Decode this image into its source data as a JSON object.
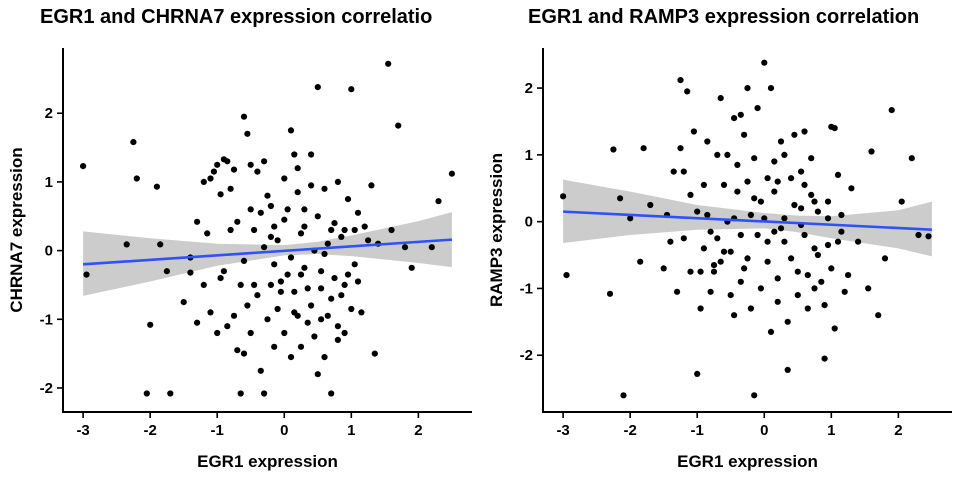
{
  "chart_data": [
    {
      "type": "scatter",
      "title": "EGR1 and CHRNA7 expression correlatio",
      "xlabel": "EGR1 expression",
      "ylabel": "CHRNA7 expression",
      "xlim": [
        -3.3,
        2.8
      ],
      "ylim": [
        -2.35,
        2.95
      ],
      "xticks": [
        -3,
        -2,
        -1,
        0,
        1,
        2
      ],
      "yticks": [
        -2,
        -1,
        0,
        1,
        2
      ],
      "grid": false,
      "fit_line": {
        "x": [
          -3.0,
          2.5
        ],
        "y": [
          -0.2,
          0.16
        ],
        "color": "#3050F8"
      },
      "confidence_band": {
        "x": [
          -3.0,
          -2.0,
          -1.0,
          0.0,
          0.5,
          1.0,
          2.0,
          2.5
        ],
        "lower": [
          -0.66,
          -0.45,
          -0.22,
          -0.07,
          -0.05,
          -0.08,
          -0.18,
          -0.24
        ],
        "upper": [
          0.28,
          0.18,
          0.1,
          0.08,
          0.13,
          0.22,
          0.43,
          0.56
        ],
        "color": "#cccccc"
      },
      "points": [
        [
          -3.0,
          1.23
        ],
        [
          -2.95,
          -0.35
        ],
        [
          -2.25,
          1.58
        ],
        [
          -2.2,
          1.05
        ],
        [
          -2.35,
          0.09
        ],
        [
          -2.0,
          -1.08
        ],
        [
          -1.9,
          0.93
        ],
        [
          -1.85,
          0.09
        ],
        [
          -2.05,
          -2.08
        ],
        [
          -1.7,
          -2.08
        ],
        [
          -1.75,
          -0.3
        ],
        [
          -1.4,
          -0.32
        ],
        [
          -1.3,
          0.42
        ],
        [
          -1.1,
          1.05
        ],
        [
          -1.05,
          1.15
        ],
        [
          -1.0,
          1.25
        ],
        [
          -0.95,
          0.82
        ],
        [
          -0.9,
          1.33
        ],
        [
          -0.85,
          1.3
        ],
        [
          -0.8,
          0.9
        ],
        [
          -0.75,
          1.18
        ],
        [
          -0.7,
          0.42
        ],
        [
          -0.65,
          -0.5
        ],
        [
          -0.6,
          1.95
        ],
        [
          -0.55,
          1.7
        ],
        [
          -0.5,
          0.6
        ],
        [
          -0.45,
          0.3
        ],
        [
          -0.4,
          1.15
        ],
        [
          -0.35,
          0.55
        ],
        [
          -0.3,
          1.3
        ],
        [
          -0.25,
          0.8
        ],
        [
          -0.2,
          0.2
        ],
        [
          -0.15,
          -0.2
        ],
        [
          -0.1,
          0.15
        ],
        [
          -0.05,
          -0.45
        ],
        [
          0.0,
          1.05
        ],
        [
          0.05,
          0.6
        ],
        [
          0.1,
          1.75
        ],
        [
          0.15,
          -0.9
        ],
        [
          0.2,
          1.2
        ],
        [
          0.25,
          0.25
        ],
        [
          0.3,
          0.6
        ],
        [
          0.35,
          -0.55
        ],
        [
          0.4,
          1.4
        ],
        [
          0.45,
          0.0
        ],
        [
          0.5,
          2.38
        ],
        [
          0.55,
          -0.3
        ],
        [
          0.6,
          0.9
        ],
        [
          0.65,
          0.1
        ],
        [
          0.7,
          -0.7
        ],
        [
          0.75,
          0.4
        ],
        [
          0.8,
          -1.3
        ],
        [
          0.85,
          0.2
        ],
        [
          0.9,
          -0.5
        ],
        [
          0.95,
          0.75
        ],
        [
          1.0,
          2.35
        ],
        [
          1.05,
          -0.2
        ],
        [
          1.1,
          0.55
        ],
        [
          1.15,
          -0.9
        ],
        [
          1.2,
          0.35
        ],
        [
          1.3,
          0.95
        ],
        [
          1.35,
          -1.5
        ],
        [
          1.4,
          0.1
        ],
        [
          1.55,
          2.72
        ],
        [
          1.6,
          0.3
        ],
        [
          1.7,
          1.82
        ],
        [
          1.8,
          0.05
        ],
        [
          1.9,
          -0.25
        ],
        [
          2.2,
          0.05
        ],
        [
          2.3,
          0.72
        ],
        [
          2.5,
          1.12
        ],
        [
          -1.5,
          -0.75
        ],
        [
          -1.3,
          -1.05
        ],
        [
          -1.2,
          -0.5
        ],
        [
          -1.1,
          -0.9
        ],
        [
          -1.0,
          -1.2
        ],
        [
          -0.9,
          -0.3
        ],
        [
          -0.85,
          -1.1
        ],
        [
          -0.75,
          -0.95
        ],
        [
          -0.7,
          -1.45
        ],
        [
          -0.6,
          -1.5
        ],
        [
          -0.55,
          -0.8
        ],
        [
          -0.5,
          -1.2
        ],
        [
          -0.4,
          -0.65
        ],
        [
          -0.35,
          -1.75
        ],
        [
          -0.3,
          -2.08
        ],
        [
          -0.25,
          -1.0
        ],
        [
          -0.2,
          -0.5
        ],
        [
          -0.15,
          -1.4
        ],
        [
          -0.1,
          -0.85
        ],
        [
          -0.05,
          -0.6
        ],
        [
          0.0,
          -1.2
        ],
        [
          0.05,
          -0.35
        ],
        [
          0.1,
          -1.55
        ],
        [
          0.15,
          -0.6
        ],
        [
          0.2,
          -0.95
        ],
        [
          0.25,
          -1.4
        ],
        [
          0.3,
          -0.25
        ],
        [
          0.35,
          -1.05
        ],
        [
          0.4,
          -0.8
        ],
        [
          0.45,
          -1.25
        ],
        [
          0.5,
          -1.8
        ],
        [
          0.55,
          -0.55
        ],
        [
          0.6,
          -1.55
        ],
        [
          0.65,
          -0.95
        ],
        [
          0.7,
          -2.08
        ],
        [
          0.75,
          -0.4
        ],
        [
          0.8,
          -1.1
        ],
        [
          0.85,
          -0.65
        ],
        [
          0.9,
          -1.2
        ],
        [
          0.95,
          -0.35
        ],
        [
          1.0,
          -0.85
        ],
        [
          1.1,
          -0.45
        ],
        [
          -0.65,
          -2.08
        ],
        [
          -1.2,
          1.0
        ],
        [
          -1.15,
          0.25
        ],
        [
          -0.95,
          -0.4
        ],
        [
          -0.8,
          0.3
        ],
        [
          -0.6,
          -0.15
        ],
        [
          -0.45,
          -0.5
        ],
        [
          -0.3,
          0.05
        ],
        [
          -0.2,
          0.65
        ],
        [
          0.0,
          0.45
        ],
        [
          0.1,
          -0.1
        ],
        [
          0.2,
          0.85
        ],
        [
          0.3,
          0.35
        ],
        [
          0.4,
          0.95
        ],
        [
          0.5,
          0.5
        ],
        [
          0.6,
          -0.05
        ],
        [
          0.7,
          0.3
        ],
        [
          0.8,
          1.0
        ],
        [
          0.9,
          0.3
        ],
        [
          1.05,
          0.3
        ],
        [
          -1.4,
          -0.1
        ],
        [
          -0.5,
          1.25
        ],
        [
          0.15,
          1.4
        ],
        [
          1.25,
          0.15
        ],
        [
          0.55,
          -1.0
        ],
        [
          -0.15,
          0.35
        ],
        [
          0.25,
          -0.35
        ]
      ]
    },
    {
      "type": "scatter",
      "title": "EGR1 and RAMP3 expression correlation",
      "xlabel": "EGR1 expression",
      "ylabel": "RAMP3 expression",
      "xlim": [
        -3.3,
        2.8
      ],
      "ylim": [
        -2.85,
        2.6
      ],
      "xticks": [
        -3,
        -2,
        -1,
        0,
        1,
        2
      ],
      "yticks": [
        -2,
        -1,
        0,
        1,
        2
      ],
      "grid": false,
      "fit_line": {
        "x": [
          -3.0,
          2.5
        ],
        "y": [
          0.15,
          -0.12
        ],
        "color": "#3050F8"
      },
      "confidence_band": {
        "x": [
          -3.0,
          -2.0,
          -1.0,
          0.0,
          0.5,
          1.0,
          2.0,
          2.5
        ],
        "lower": [
          -0.32,
          -0.2,
          -0.12,
          -0.1,
          -0.16,
          -0.25,
          -0.4,
          -0.52
        ],
        "upper": [
          0.63,
          0.45,
          0.25,
          0.13,
          0.09,
          0.08,
          0.17,
          0.3
        ],
        "color": "#cccccc"
      },
      "points": [
        [
          -3.0,
          0.38
        ],
        [
          -2.95,
          -0.8
        ],
        [
          -2.3,
          -1.08
        ],
        [
          -2.25,
          1.08
        ],
        [
          -2.15,
          0.35
        ],
        [
          -2.1,
          -2.6
        ],
        [
          -2.0,
          0.05
        ],
        [
          -1.85,
          -0.6
        ],
        [
          -1.8,
          1.1
        ],
        [
          -1.7,
          0.25
        ],
        [
          -1.5,
          -0.7
        ],
        [
          -1.45,
          0.1
        ],
        [
          -1.3,
          -1.05
        ],
        [
          -1.25,
          2.12
        ],
        [
          -1.2,
          0.75
        ],
        [
          -1.15,
          1.95
        ],
        [
          -1.1,
          0.4
        ],
        [
          -1.05,
          1.35
        ],
        [
          -1.0,
          -2.28
        ],
        [
          -0.95,
          -0.75
        ],
        [
          -0.9,
          0.55
        ],
        [
          -0.85,
          1.2
        ],
        [
          -0.8,
          -0.15
        ],
        [
          -0.75,
          -0.65
        ],
        [
          -0.7,
          1.0
        ],
        [
          -0.65,
          1.85
        ],
        [
          -0.6,
          -0.45
        ],
        [
          -0.55,
          0.0
        ],
        [
          -0.5,
          -1.1
        ],
        [
          -0.45,
          1.55
        ],
        [
          -0.4,
          0.45
        ],
        [
          -0.35,
          -0.9
        ],
        [
          -0.3,
          1.3
        ],
        [
          -0.25,
          2.0
        ],
        [
          -0.2,
          0.1
        ],
        [
          -0.15,
          -2.6
        ],
        [
          -0.1,
          1.7
        ],
        [
          -0.05,
          0.3
        ],
        [
          0.0,
          2.38
        ],
        [
          0.05,
          -0.6
        ],
        [
          0.1,
          2.0
        ],
        [
          0.15,
          0.9
        ],
        [
          0.2,
          -1.2
        ],
        [
          0.25,
          1.2
        ],
        [
          0.3,
          -0.3
        ],
        [
          0.35,
          -2.22
        ],
        [
          0.4,
          0.65
        ],
        [
          0.45,
          1.3
        ],
        [
          0.5,
          -0.75
        ],
        [
          0.55,
          0.2
        ],
        [
          0.6,
          0.55
        ],
        [
          0.65,
          -1.3
        ],
        [
          0.7,
          0.95
        ],
        [
          0.75,
          -0.4
        ],
        [
          0.8,
          0.15
        ],
        [
          0.85,
          -0.9
        ],
        [
          0.9,
          -2.05
        ],
        [
          0.95,
          0.3
        ],
        [
          1.0,
          1.42
        ],
        [
          1.05,
          -1.6
        ],
        [
          1.1,
          0.7
        ],
        [
          1.15,
          -0.15
        ],
        [
          1.2,
          -1.05
        ],
        [
          1.3,
          0.5
        ],
        [
          1.4,
          -0.3
        ],
        [
          1.55,
          -1.0
        ],
        [
          1.6,
          1.05
        ],
        [
          1.7,
          -1.4
        ],
        [
          1.8,
          -0.55
        ],
        [
          1.9,
          1.67
        ],
        [
          2.05,
          0.3
        ],
        [
          2.2,
          0.95
        ],
        [
          2.3,
          -0.2
        ],
        [
          2.45,
          -0.22
        ],
        [
          -1.4,
          -0.3
        ],
        [
          -1.35,
          0.75
        ],
        [
          -1.2,
          -0.25
        ],
        [
          -1.1,
          -0.75
        ],
        [
          -1.0,
          0.15
        ],
        [
          -0.95,
          -1.3
        ],
        [
          -0.9,
          -0.4
        ],
        [
          -0.85,
          0.1
        ],
        [
          -0.8,
          -1.05
        ],
        [
          -0.7,
          -0.25
        ],
        [
          -0.65,
          -0.6
        ],
        [
          -0.6,
          0.55
        ],
        [
          -0.5,
          -0.45
        ],
        [
          -0.45,
          -1.4
        ],
        [
          -0.4,
          0.85
        ],
        [
          -0.35,
          -0.2
        ],
        [
          -0.3,
          -0.7
        ],
        [
          -0.25,
          0.6
        ],
        [
          -0.2,
          -1.3
        ],
        [
          -0.15,
          0.35
        ],
        [
          -0.1,
          -0.2
        ],
        [
          -0.05,
          -1.0
        ],
        [
          0.0,
          0.05
        ],
        [
          0.05,
          -0.3
        ],
        [
          0.1,
          -1.65
        ],
        [
          0.15,
          0.45
        ],
        [
          0.2,
          -0.85
        ],
        [
          0.25,
          -0.1
        ],
        [
          0.3,
          1.0
        ],
        [
          0.35,
          -1.5
        ],
        [
          0.4,
          -0.55
        ],
        [
          0.45,
          0.25
        ],
        [
          0.5,
          -1.1
        ],
        [
          0.55,
          0.75
        ],
        [
          0.6,
          -0.2
        ],
        [
          0.65,
          -0.8
        ],
        [
          0.7,
          0.4
        ],
        [
          0.75,
          -1.0
        ],
        [
          0.8,
          -0.5
        ],
        [
          0.9,
          -1.25
        ],
        [
          0.95,
          -0.35
        ],
        [
          1.0,
          -0.7
        ],
        [
          1.1,
          -0.3
        ],
        [
          1.15,
          0.1
        ],
        [
          1.25,
          -0.8
        ],
        [
          -0.55,
          1.0
        ],
        [
          -0.35,
          1.6
        ],
        [
          -0.15,
          0.95
        ],
        [
          0.05,
          0.65
        ],
        [
          0.3,
          0.05
        ],
        [
          0.55,
          -0.05
        ],
        [
          0.75,
          0.3
        ],
        [
          0.95,
          0.05
        ],
        [
          -1.25,
          1.1
        ],
        [
          -0.75,
          -0.75
        ],
        [
          -0.25,
          -0.55
        ],
        [
          0.2,
          0.6
        ],
        [
          0.6,
          1.35
        ],
        [
          1.05,
          1.4
        ],
        [
          -0.45,
          0.05
        ],
        [
          0.15,
          -0.15
        ]
      ]
    }
  ]
}
